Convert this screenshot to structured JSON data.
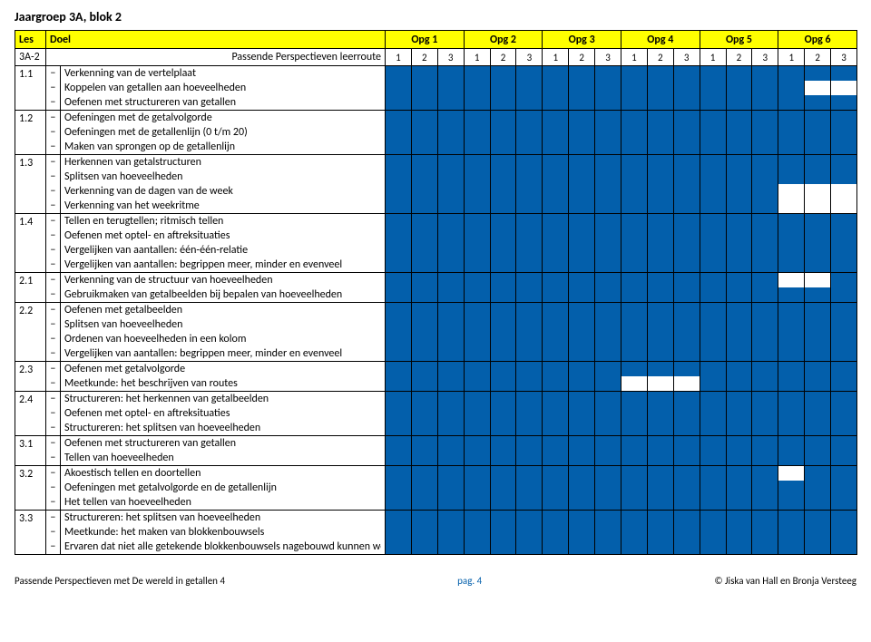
{
  "title": "Jaargroep 3A, blok 2",
  "header": {
    "les": "Les",
    "doel": "Doel",
    "opg": [
      "Opg 1",
      "Opg 2",
      "Opg 3",
      "Opg  4",
      "Opg 5",
      "Opg 6"
    ],
    "subline_les": "3A-2",
    "subline_doel": "Passende Perspectieven leerroute",
    "nums": [
      "1",
      "2",
      "3",
      "1",
      "2",
      "3",
      "1",
      "2",
      "3",
      "1",
      "2",
      "3",
      "1",
      "2",
      "3",
      "1",
      "2",
      "3"
    ]
  },
  "rows": [
    {
      "les": "1.1",
      "items": [
        "Verkenning van de vertelplaat",
        "Koppelen van getallen aan hoeveelheden",
        "Oefenen met structureren van getallen"
      ],
      "grid": [
        [
          1,
          1,
          1,
          1,
          1,
          1,
          1,
          1,
          1,
          1,
          1,
          1,
          1,
          1,
          1,
          1,
          1,
          1
        ],
        [
          1,
          1,
          1,
          1,
          1,
          1,
          1,
          1,
          1,
          1,
          1,
          1,
          1,
          1,
          1,
          1,
          0,
          0
        ],
        [
          1,
          1,
          1,
          1,
          1,
          1,
          1,
          1,
          1,
          1,
          1,
          1,
          1,
          1,
          1,
          1,
          1,
          1
        ]
      ]
    },
    {
      "les": "1.2",
      "items": [
        "Oefeningen met de getalvolgorde",
        "Oefeningen met de getallenlijn (0 t/m 20)",
        "Maken van sprongen op de getallenlijn"
      ],
      "grid": [
        [
          1,
          1,
          1,
          1,
          1,
          1,
          1,
          1,
          1,
          1,
          1,
          1,
          1,
          1,
          1,
          1,
          1,
          1
        ],
        [
          1,
          1,
          1,
          1,
          1,
          1,
          1,
          1,
          1,
          1,
          1,
          1,
          1,
          1,
          1,
          1,
          1,
          1
        ],
        [
          1,
          1,
          1,
          1,
          1,
          1,
          1,
          1,
          1,
          1,
          1,
          1,
          1,
          1,
          1,
          1,
          1,
          1
        ]
      ]
    },
    {
      "les": "1.3",
      "items": [
        "Herkennen van getalstructuren",
        "Splitsen van hoeveelheden",
        "Verkenning van de dagen van de week",
        "Verkenning van het weekritme"
      ],
      "grid": [
        [
          1,
          1,
          1,
          1,
          1,
          1,
          1,
          1,
          1,
          1,
          1,
          1,
          1,
          1,
          1,
          1,
          1,
          1
        ],
        [
          1,
          1,
          1,
          1,
          1,
          1,
          1,
          1,
          1,
          1,
          1,
          1,
          1,
          1,
          1,
          1,
          1,
          1
        ],
        [
          1,
          1,
          1,
          1,
          1,
          1,
          1,
          1,
          1,
          1,
          1,
          1,
          1,
          1,
          1,
          0,
          0,
          0
        ],
        [
          1,
          1,
          1,
          1,
          1,
          1,
          1,
          1,
          1,
          1,
          1,
          1,
          1,
          1,
          1,
          0,
          0,
          0
        ]
      ]
    },
    {
      "les": "1.4",
      "items": [
        "Tellen en terugtellen; ritmisch tellen",
        "Oefenen met optel- en aftreksituaties",
        "Vergelijken van aantallen: één-één-relatie",
        "Vergelijken van aantallen: begrippen meer, minder en evenveel"
      ],
      "grid": [
        [
          1,
          1,
          1,
          1,
          1,
          1,
          1,
          1,
          1,
          1,
          1,
          1,
          1,
          1,
          1,
          1,
          1,
          1
        ],
        [
          1,
          1,
          1,
          1,
          1,
          1,
          1,
          1,
          1,
          1,
          1,
          1,
          1,
          1,
          1,
          1,
          1,
          1
        ],
        [
          1,
          1,
          1,
          1,
          1,
          1,
          1,
          1,
          1,
          1,
          1,
          1,
          1,
          1,
          1,
          1,
          1,
          1
        ],
        [
          1,
          1,
          1,
          1,
          1,
          1,
          1,
          1,
          1,
          1,
          1,
          1,
          1,
          1,
          1,
          1,
          1,
          1
        ]
      ]
    },
    {
      "les": "2.1",
      "items": [
        "Verkenning van de structuur van hoeveelheden",
        "Gebruikmaken van getalbeelden bij bepalen van hoeveelheden"
      ],
      "grid": [
        [
          1,
          1,
          1,
          1,
          1,
          1,
          1,
          1,
          1,
          1,
          1,
          1,
          1,
          1,
          1,
          0,
          0,
          1
        ],
        [
          1,
          1,
          1,
          1,
          1,
          1,
          1,
          1,
          1,
          1,
          1,
          1,
          1,
          1,
          1,
          1,
          1,
          1
        ]
      ]
    },
    {
      "les": "2.2",
      "items": [
        "Oefenen met getalbeelden",
        "Splitsen van hoeveelheden",
        "Ordenen van hoeveelheden in een kolom",
        "Vergelijken van aantallen: begrippen meer, minder en evenveel"
      ],
      "grid": [
        [
          1,
          1,
          1,
          1,
          1,
          1,
          1,
          1,
          1,
          1,
          1,
          1,
          1,
          1,
          1,
          1,
          1,
          1
        ],
        [
          1,
          1,
          1,
          1,
          1,
          1,
          1,
          1,
          1,
          1,
          1,
          1,
          1,
          1,
          1,
          1,
          1,
          1
        ],
        [
          1,
          1,
          1,
          1,
          1,
          1,
          1,
          1,
          1,
          1,
          1,
          1,
          1,
          1,
          1,
          1,
          1,
          1
        ],
        [
          1,
          1,
          1,
          1,
          1,
          1,
          1,
          1,
          1,
          1,
          1,
          1,
          1,
          1,
          1,
          1,
          1,
          1
        ]
      ]
    },
    {
      "les": "2.3",
      "items": [
        "Oefenen met getalvolgorde",
        "Meetkunde: het beschrijven van routes"
      ],
      "grid": [
        [
          1,
          1,
          1,
          1,
          1,
          1,
          1,
          1,
          1,
          1,
          1,
          1,
          1,
          1,
          1,
          1,
          1,
          1
        ],
        [
          1,
          1,
          1,
          1,
          1,
          1,
          1,
          1,
          1,
          0,
          0,
          0,
          1,
          1,
          1,
          1,
          1,
          1
        ]
      ]
    },
    {
      "les": "2.4",
      "items": [
        "Structureren: het herkennen van getalbeelden",
        "Oefenen met optel- en aftreksituaties",
        "Structureren: het splitsen van hoeveelheden"
      ],
      "grid": [
        [
          1,
          1,
          1,
          1,
          1,
          1,
          1,
          1,
          1,
          1,
          1,
          1,
          1,
          1,
          1,
          1,
          1,
          1
        ],
        [
          1,
          1,
          1,
          1,
          1,
          1,
          1,
          1,
          1,
          1,
          1,
          1,
          1,
          1,
          1,
          1,
          1,
          1
        ],
        [
          1,
          1,
          1,
          1,
          1,
          1,
          1,
          1,
          1,
          1,
          1,
          1,
          1,
          1,
          1,
          1,
          1,
          1
        ]
      ]
    },
    {
      "les": "3.1",
      "items": [
        "Oefenen met structureren van getallen",
        "Tellen van hoeveelheden"
      ],
      "grid": [
        [
          1,
          1,
          1,
          1,
          1,
          1,
          1,
          1,
          1,
          1,
          1,
          1,
          1,
          1,
          1,
          1,
          1,
          1
        ],
        [
          1,
          1,
          1,
          1,
          1,
          1,
          1,
          1,
          1,
          1,
          1,
          1,
          1,
          1,
          1,
          1,
          1,
          1
        ]
      ]
    },
    {
      "les": "3.2",
      "items": [
        "Akoestisch tellen en doortellen",
        "Oefeningen met getalvolgorde en de getallenlijn",
        "Het tellen van hoeveelheden"
      ],
      "grid": [
        [
          1,
          1,
          1,
          1,
          1,
          1,
          1,
          1,
          1,
          1,
          1,
          1,
          1,
          1,
          1,
          0,
          1,
          1
        ],
        [
          1,
          1,
          1,
          1,
          1,
          1,
          1,
          1,
          1,
          1,
          1,
          1,
          1,
          1,
          1,
          1,
          1,
          1
        ],
        [
          1,
          1,
          1,
          1,
          1,
          1,
          1,
          1,
          1,
          1,
          1,
          1,
          1,
          1,
          1,
          1,
          1,
          1
        ]
      ]
    },
    {
      "les": "3.3",
      "items": [
        "Structureren: het splitsen van hoeveelheden",
        "Meetkunde: het maken van blokkenbouwsels",
        "Ervaren dat niet alle getekende blokkenbouwsels nagebouwd kunnen worden"
      ],
      "grid": [
        [
          1,
          1,
          1,
          1,
          1,
          1,
          1,
          1,
          1,
          1,
          1,
          1,
          1,
          1,
          1,
          1,
          1,
          1
        ],
        [
          1,
          1,
          1,
          1,
          1,
          1,
          1,
          1,
          1,
          1,
          1,
          1,
          1,
          1,
          1,
          1,
          1,
          1
        ],
        [
          1,
          1,
          1,
          1,
          1,
          1,
          1,
          1,
          1,
          1,
          1,
          1,
          1,
          1,
          1,
          1,
          1,
          1
        ]
      ]
    }
  ],
  "footer": {
    "left": "Passende Perspectieven met De wereld in getallen 4",
    "page": "pag. 4",
    "right": "© Jiska van Hall en Bronja Versteeg"
  },
  "colors": {
    "filled": "#035fab",
    "header_bg": "#ffff00"
  }
}
